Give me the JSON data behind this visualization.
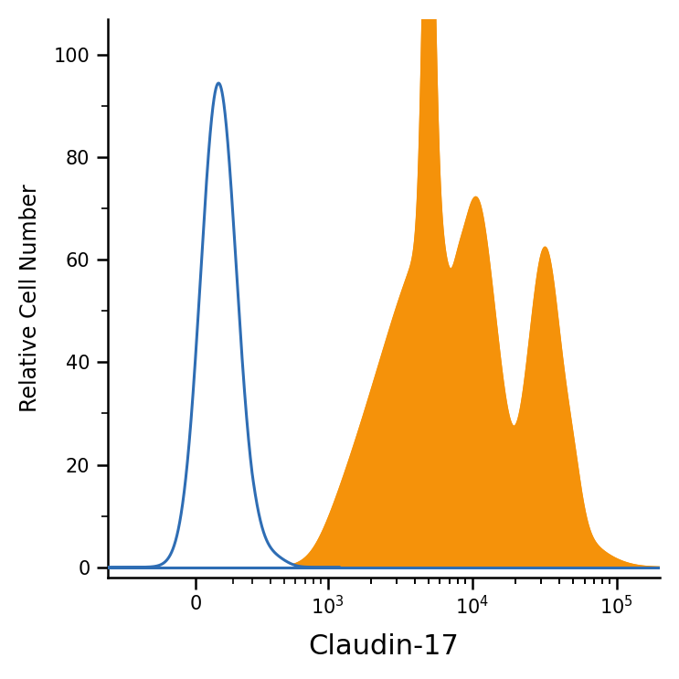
{
  "title": "",
  "xlabel": "Claudin-17",
  "ylabel": "Relative Cell Number",
  "ylim": [
    -2,
    107
  ],
  "blue_color": "#2e6db4",
  "orange_color": "#f5920a",
  "background_color": "#ffffff",
  "xlabel_fontsize": 22,
  "ylabel_fontsize": 17,
  "tick_fontsize": 15,
  "linthresh": 300,
  "linscale": 0.35
}
